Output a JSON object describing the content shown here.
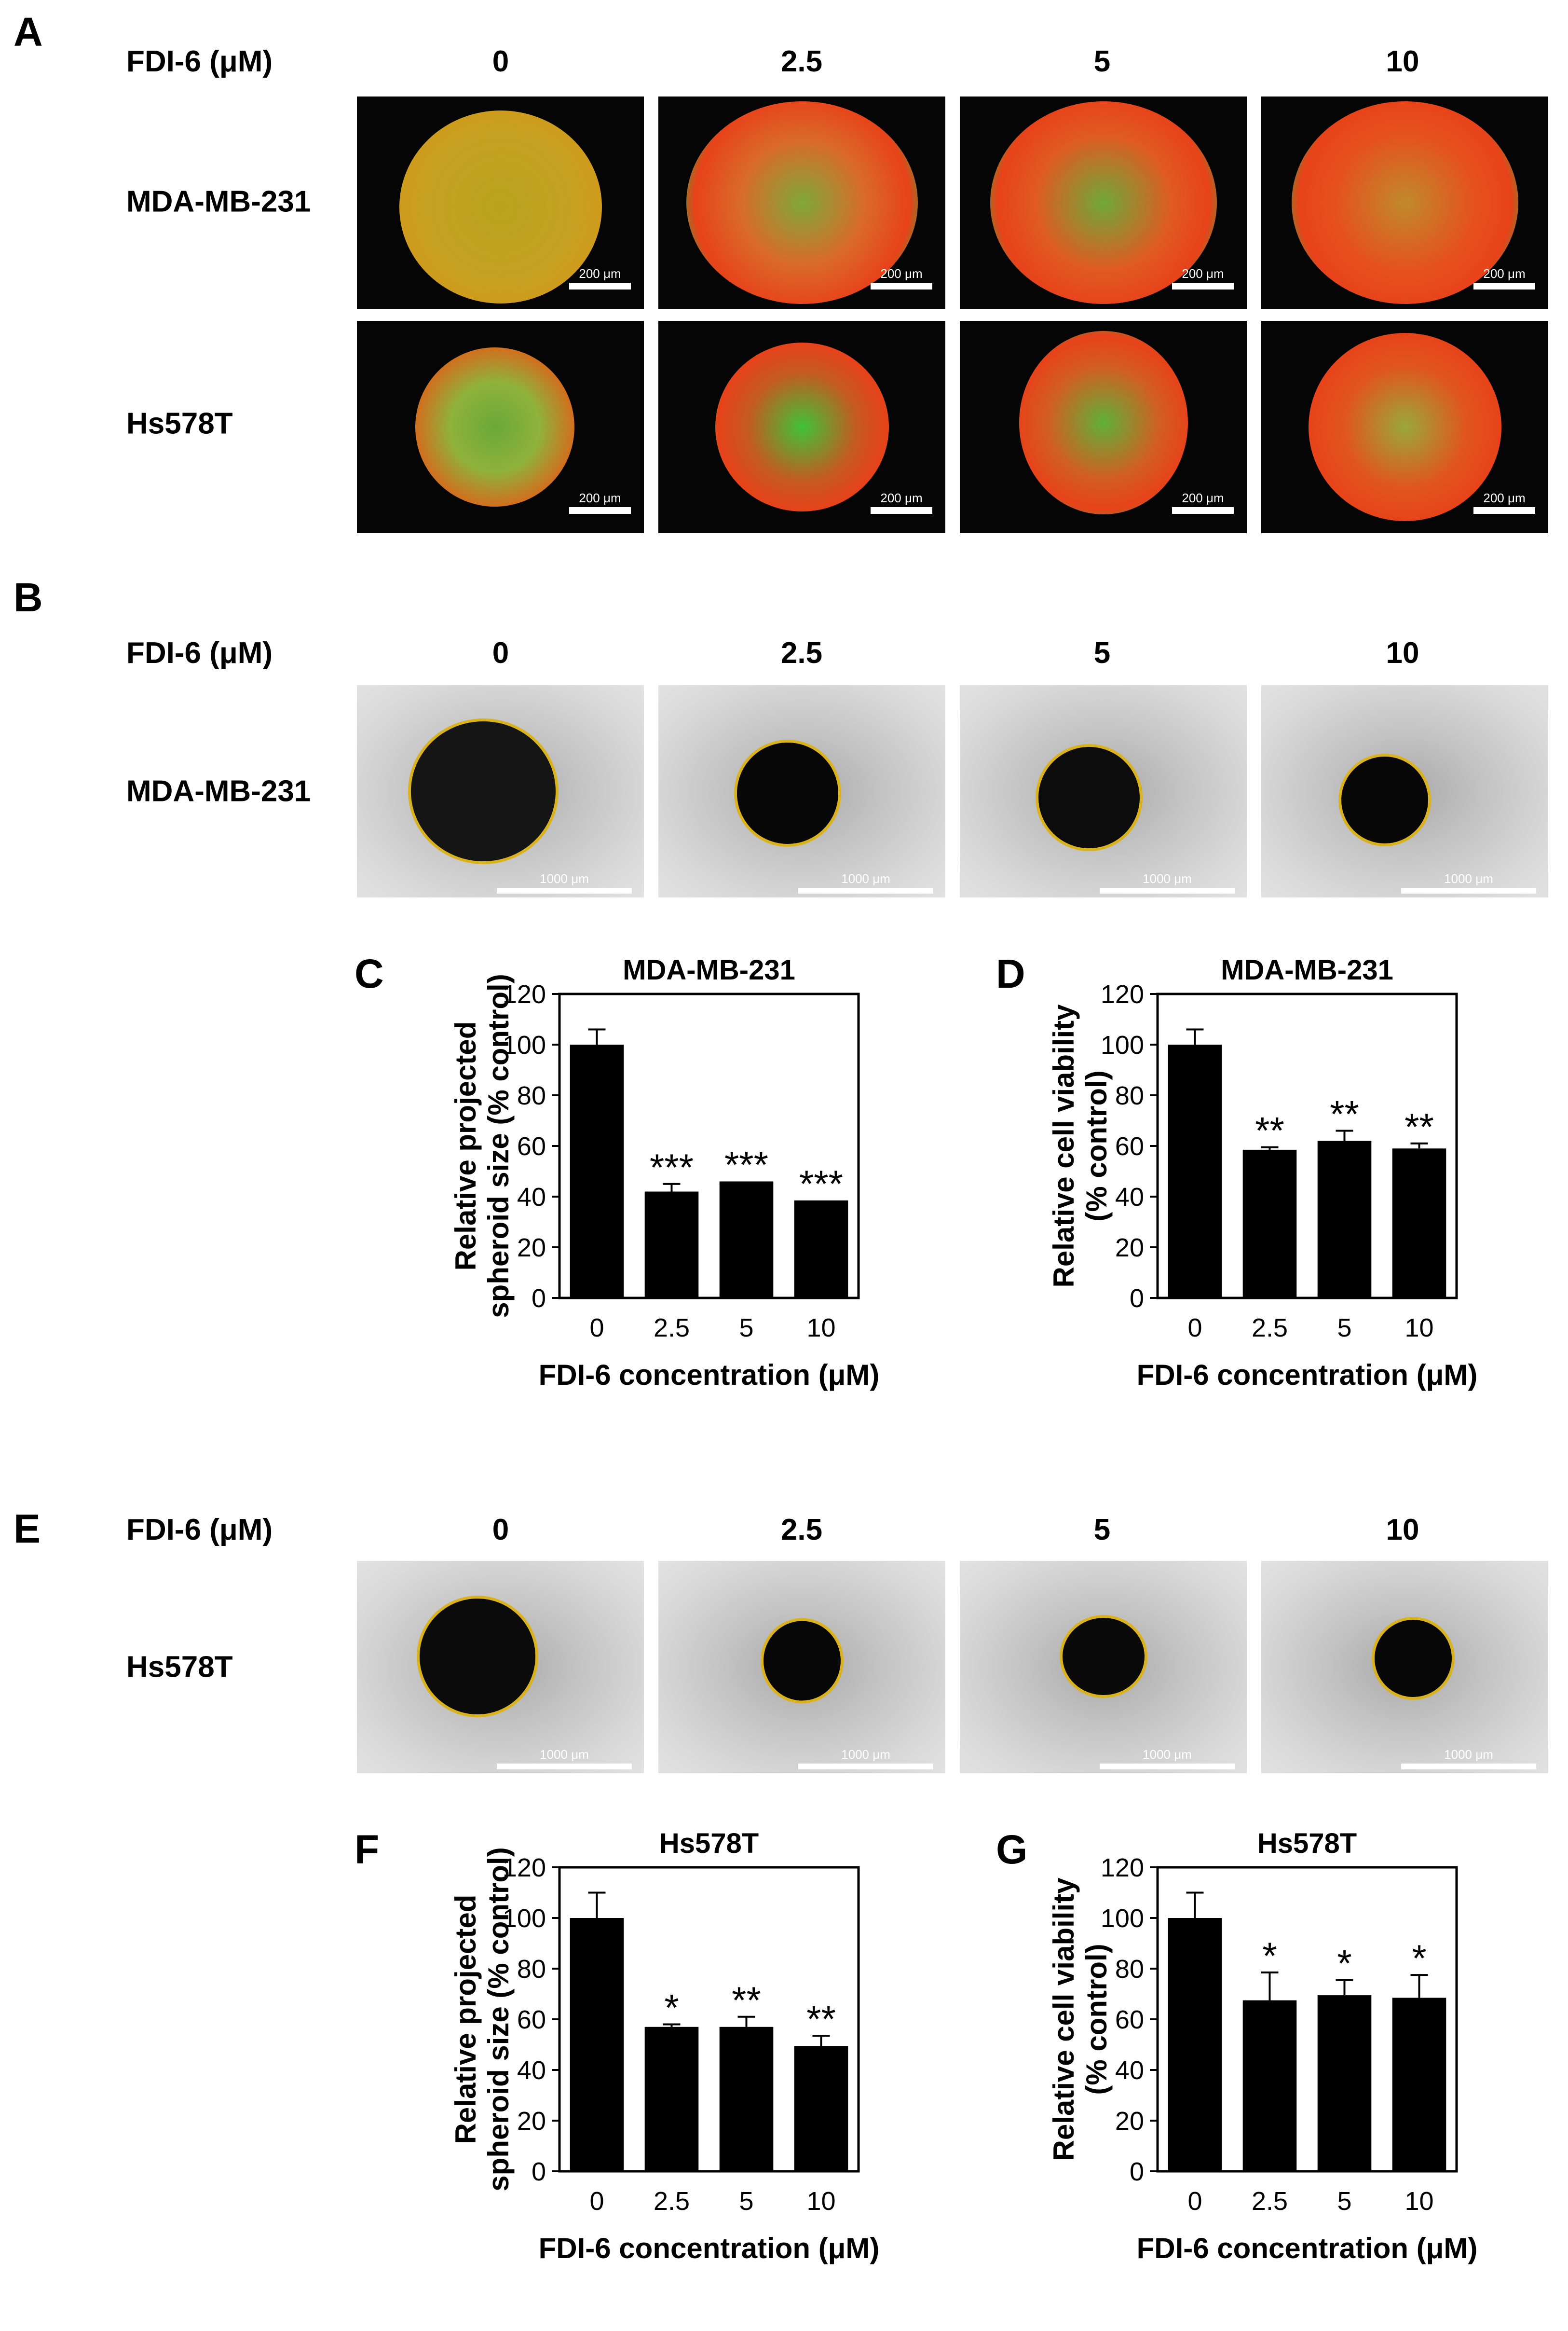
{
  "panel_letters": {
    "A": "A",
    "B": "B",
    "C": "C",
    "D": "D",
    "E": "E",
    "F": "F",
    "G": "G"
  },
  "headers": {
    "fdi_label": "FDI-6 (μM)",
    "concentrations": [
      "0",
      "2.5",
      "5",
      "10"
    ]
  },
  "row_labels": {
    "mda": "MDA-MB-231",
    "hs": "Hs578T"
  },
  "scale_bars": {
    "fluorescence": "200 μm",
    "brightfield": "1000 μm"
  },
  "colors": {
    "fluorescence_red": "#e8421a",
    "fluorescence_green": "#29c23a",
    "outline_yellow": "#d9b21c",
    "bar": "#000000"
  },
  "chart_data": [
    {
      "id": "C",
      "type": "bar",
      "title": "MDA-MB-231",
      "xlabel": "FDI-6 concentration (μM)",
      "ylabel_lines": [
        "Relative projected",
        "spheroid size (% control)"
      ],
      "categories": [
        "0",
        "2.5",
        "5",
        "10"
      ],
      "values": [
        100,
        42,
        46,
        38.5
      ],
      "errors": [
        6,
        3,
        0,
        0
      ],
      "significance": [
        "",
        "***",
        "***",
        "***"
      ],
      "ylim": [
        0,
        120
      ],
      "yticks": [
        "0",
        "20",
        "40",
        "60",
        "80",
        "100",
        "120"
      ]
    },
    {
      "id": "D",
      "type": "bar",
      "title": "MDA-MB-231",
      "xlabel": "FDI-6 concentration (μM)",
      "ylabel_lines": [
        "Relative cell viability",
        "(% control)"
      ],
      "categories": [
        "0",
        "2.5",
        "5",
        "10"
      ],
      "values": [
        100,
        58.5,
        62,
        59
      ],
      "errors": [
        6,
        1,
        4,
        2
      ],
      "significance": [
        "",
        "**",
        "**",
        "**"
      ],
      "ylim": [
        0,
        120
      ],
      "yticks": [
        "0",
        "20",
        "40",
        "60",
        "80",
        "100",
        "120"
      ]
    },
    {
      "id": "F",
      "type": "bar",
      "title": "Hs578T",
      "xlabel": "FDI-6 concentration (μM)",
      "ylabel_lines": [
        "Relative projected",
        "spheroid size (% control)"
      ],
      "categories": [
        "0",
        "2.5",
        "5",
        "10"
      ],
      "values": [
        100,
        57,
        57,
        49.5
      ],
      "errors": [
        10,
        1,
        4,
        4
      ],
      "significance": [
        "",
        "*",
        "**",
        "**"
      ],
      "ylim": [
        0,
        120
      ],
      "yticks": [
        "0",
        "20",
        "40",
        "60",
        "80",
        "100",
        "120"
      ]
    },
    {
      "id": "G",
      "type": "bar",
      "title": "Hs578T",
      "xlabel": "FDI-6 concentration (μM)",
      "ylabel_lines": [
        "Relative cell viability",
        "(% control)"
      ],
      "categories": [
        "0",
        "2.5",
        "5",
        "10"
      ],
      "values": [
        100,
        67.5,
        69.5,
        68.5
      ],
      "errors": [
        10,
        11,
        6,
        9
      ],
      "significance": [
        "",
        "*",
        "*",
        "*"
      ],
      "ylim": [
        0,
        120
      ],
      "yticks": [
        "0",
        "20",
        "40",
        "60",
        "80",
        "100",
        "120"
      ]
    }
  ]
}
